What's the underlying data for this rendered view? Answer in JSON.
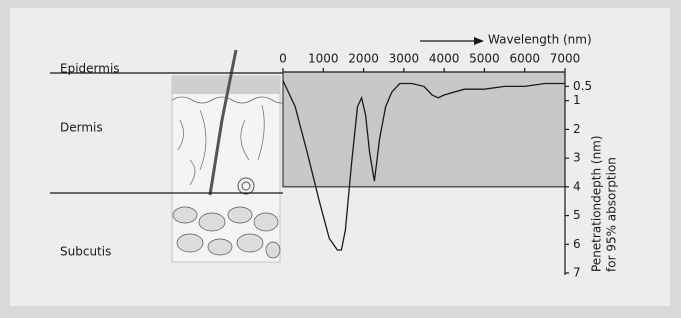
{
  "chart_data": {
    "type": "line",
    "x_label": "Wavelength (nm)",
    "y_label": [
      "Penetrationdepth (nm)",
      "for 95% absorption"
    ],
    "layers": [
      "Epidermis",
      "Dermis",
      "Subcutis"
    ],
    "x": [
      0,
      300,
      600,
      900,
      1150,
      1350,
      1450,
      1550,
      1700,
      1850,
      1950,
      2050,
      2150,
      2270,
      2400,
      2550,
      2700,
      2900,
      3200,
      3500,
      3700,
      3850,
      4000,
      4500,
      5000,
      5500,
      6000,
      6500,
      7000
    ],
    "values": [
      0.3,
      1.2,
      2.8,
      4.5,
      5.8,
      6.2,
      6.2,
      5.5,
      3.2,
      1.2,
      0.9,
      1.5,
      2.8,
      3.8,
      2.3,
      1.2,
      0.7,
      0.4,
      0.4,
      0.5,
      0.8,
      0.9,
      0.8,
      0.6,
      0.6,
      0.5,
      0.5,
      0.4,
      0.4
    ],
    "color": "#1a1a1a",
    "shade_color": "#c8c8c8",
    "shade_depth": 4,
    "xlim": [
      0,
      7000
    ],
    "xticks": [
      0,
      1000,
      2000,
      3000,
      4000,
      5000,
      6000,
      7000
    ],
    "ylim": [
      0,
      7
    ],
    "yticks": [
      0.5,
      1,
      2,
      3,
      4,
      5,
      6,
      7
    ]
  }
}
